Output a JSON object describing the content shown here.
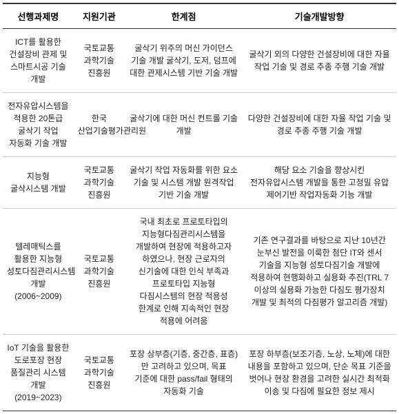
{
  "table": {
    "columns": [
      "선행과제명",
      "지원기관",
      "한계점",
      "기술개발방향"
    ],
    "col_widths": [
      "18%",
      "13%",
      "30%",
      "39%"
    ],
    "header_fontsize": 13,
    "cell_fontsize": 12,
    "border_color_strong": "#333333",
    "border_color_light": "#cccccc",
    "background_color": "#ffffff",
    "text_color": "#222222",
    "rows": [
      {
        "c0": "ICT를 활용한 건설장비 관제 및 스마트시공 기술 개발",
        "c1": "국토교통 과학기술 진흥원",
        "c2": "굴삭기 위주의 머신 가이던스 기술 개발 굴삭기, 도저, 덤프에 대한 관제시스템 기반 기술 개발",
        "c3": "굴삭기 외의 다양한 건설장비에 대한 자율 작업 기술 및 경로 추종 주행 기술 개발"
      },
      {
        "c0": "전자유압시스템을 적용한 20톤급 굴삭기 작업 자동화 기술 개발",
        "c1": "한국 산업기술평가관리원",
        "c2": "굴삭기에 대한 머신 컨트롤 기술 개발",
        "c3": "다양한 건설장비에 대한 자율 작업 기술 및 경로 추종 주행 기술 개발"
      },
      {
        "c0": "지능형 굴삭시스템 개발",
        "c1": "국토교통 과학기술 진흥원",
        "c2": "굴삭기 작업 자동화를 위한 요소 기술 및 시스템 개발 원격작업 기반 기술 개발",
        "c3": "해당 요소 기술을 향상시킨 전자유압시스템 개발을 통한 고정밀 유압 제어기반 작업자동화 기능 개발"
      },
      {
        "c0": "텔레매틱스를 활용한 지능형 성토다짐관리시스템 개발 (2006~2009)",
        "c1": "국토교통 과학기술 진흥원",
        "c2": "국내 최초로 프로토타입의 지능형다짐관리시스템을 개발하여 현장에 적용하고자 하였으나, 현장 근로자의 신기술에 대한 인식 부족과 프로토타입 지능형 다짐시스템의 현장 적용성 한계로 인해 지속적인 현장 적용에 어려움",
        "c3": "기존 연구결과를 바탕으로 지난 10년간 눈부신 발전을 이룩한 첨단 IT와 센서 기술을 지능형 성토다짐기술 개발에 적용하여 현행화하고 실용화 추진(TRL 7 이상의 실용화 가능한 다짐도 평가장치 개발 및 최적의 다짐평가 알고리즘 개발)"
      },
      {
        "c0": "IoT 기술을 활용한 도로포장 현장 품질관리 시스템 개발 (2019~2023)",
        "c1": "국토교통 과학기술 진흥원",
        "c2": "포장 상부층(기층, 중간층, 표층)만 고려하고 있으며, 목표 기준에 대한 pass/fail 형태의 자동화 기술",
        "c3": "포장 하부층(보조기층, 노상, 노체)에 대한 내용을 포함하고 있으며, 단순 목표 기준을 벗어나 현장 환경을 고려한 실시간 최적화 이송 및 다짐에 필요한 정보 제시"
      }
    ]
  }
}
